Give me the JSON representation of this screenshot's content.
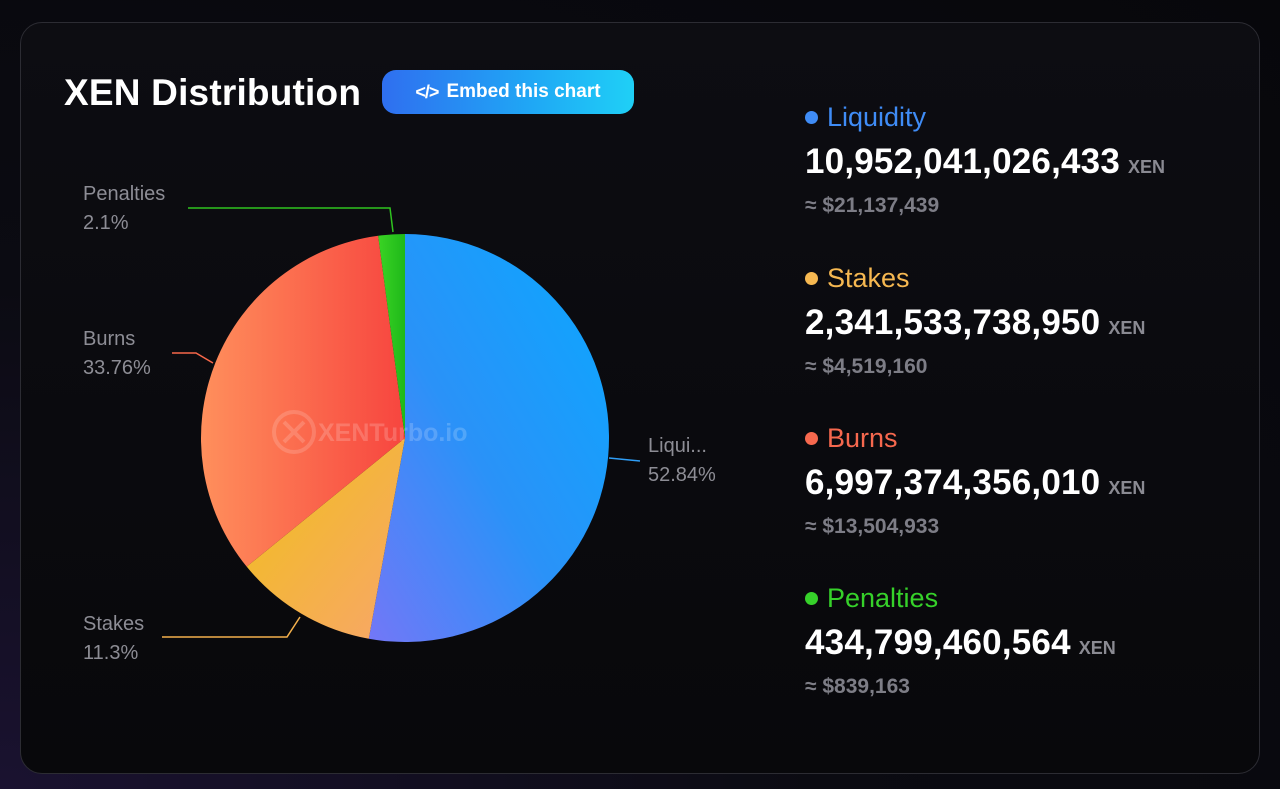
{
  "header": {
    "title": "XEN Distribution",
    "embed_label": "Embed this chart",
    "embed_icon": "</>"
  },
  "watermark": "XENTurbo.io",
  "colors": {
    "liquidity": "#2f9df5",
    "stakes": "#f4b04c",
    "burns": "#f8684a",
    "penalties": "#2fc41f"
  },
  "chart_data": {
    "type": "pie",
    "slices": [
      {
        "name": "Liquidity",
        "display": "Liqui...",
        "percent": 52.84,
        "percent_label": "52.84%",
        "color": "#2f9df5"
      },
      {
        "name": "Stakes",
        "display": "Stakes",
        "percent": 11.3,
        "percent_label": "11.3%",
        "color": "#f4b04c"
      },
      {
        "name": "Burns",
        "display": "Burns",
        "percent": 33.76,
        "percent_label": "33.76%",
        "color": "#f8684a"
      },
      {
        "name": "Penalties",
        "display": "Penalties",
        "percent": 2.1,
        "percent_label": "2.1%",
        "color": "#2fc41f"
      }
    ]
  },
  "legend": [
    {
      "name": "Liquidity",
      "amount": "10,952,041,026,433",
      "unit": "XEN",
      "usd": "≈ $21,137,439",
      "color": "#3f8cf6"
    },
    {
      "name": "Stakes",
      "amount": "2,341,533,738,950",
      "unit": "XEN",
      "usd": "≈ $4,519,160",
      "color": "#f6b851"
    },
    {
      "name": "Burns",
      "amount": "6,997,374,356,010",
      "unit": "XEN",
      "usd": "≈ $13,504,933",
      "color": "#f6684e"
    },
    {
      "name": "Penalties",
      "amount": "434,799,460,564",
      "unit": "XEN",
      "usd": "≈ $839,163",
      "color": "#36d12a"
    }
  ]
}
